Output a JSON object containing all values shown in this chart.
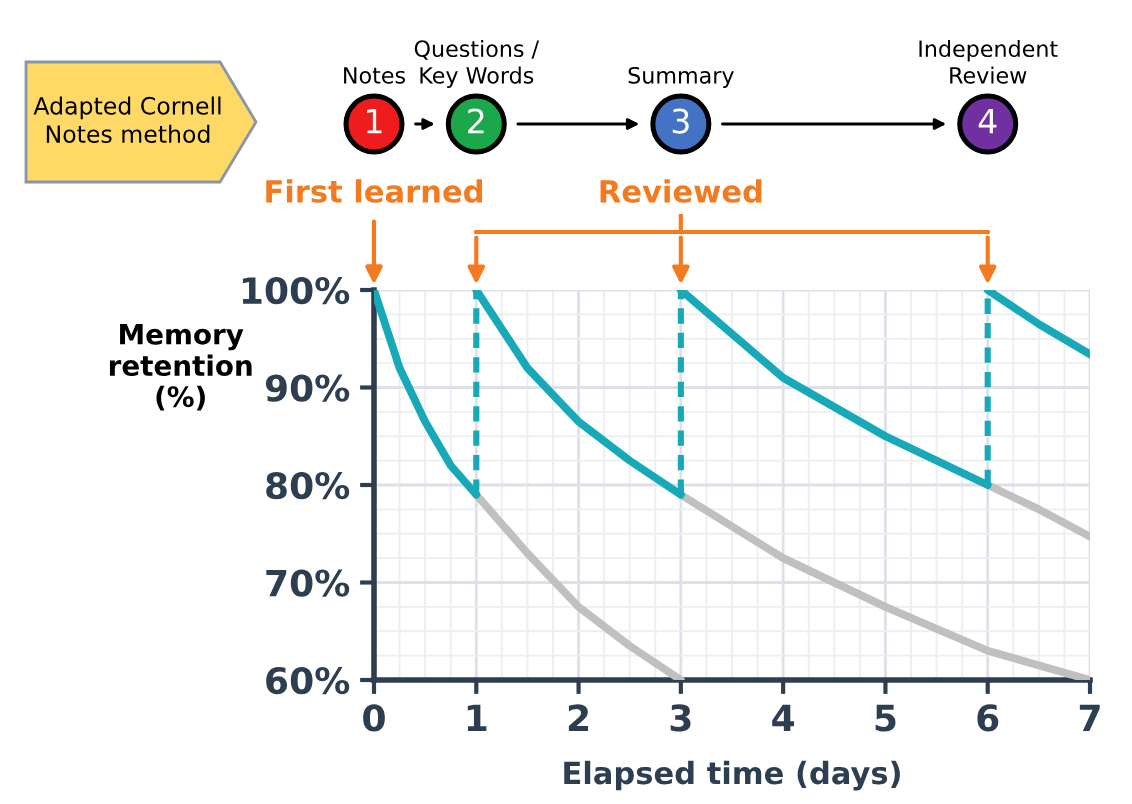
{
  "chart_data": {
    "type": "line",
    "xlabel": "Elapsed time (days)",
    "ylabel": "Memory\nretention\n(%)",
    "xlim": [
      0,
      7
    ],
    "ylim": [
      60,
      100
    ],
    "xticks": [
      0,
      1,
      2,
      3,
      4,
      5,
      6,
      7
    ],
    "yticks": [
      {
        "value": 60,
        "label": "60%"
      },
      {
        "value": 70,
        "label": "70%"
      },
      {
        "value": 80,
        "label": "80%"
      },
      {
        "value": 90,
        "label": "90%"
      },
      {
        "value": 100,
        "label": "100%"
      }
    ],
    "grid": true,
    "marker": "none",
    "series": [
      {
        "color": "#c0c0c0",
        "x": [
          1,
          1.5,
          2,
          2.5,
          3
        ],
        "values": [
          79,
          73,
          67.5,
          63.5,
          60
        ]
      },
      {
        "color": "#c0c0c0",
        "x": [
          3,
          4,
          5,
          6,
          7
        ],
        "values": [
          79,
          72.5,
          67.5,
          63,
          60
        ]
      },
      {
        "color": "#c0c0c0",
        "x": [
          6,
          6.5,
          7
        ],
        "values": [
          80,
          77.5,
          74.7
        ]
      },
      {
        "color": "#17a9b8",
        "line_style": "solid",
        "x": [
          0,
          0.25,
          0.5,
          0.75,
          1
        ],
        "values": [
          100,
          92,
          86.5,
          82,
          79
        ]
      },
      {
        "color": "#17a9b8",
        "line_style": "solid",
        "x": [
          1,
          1.5,
          2,
          2.5,
          3
        ],
        "values": [
          100,
          92,
          86.5,
          82.5,
          79
        ]
      },
      {
        "color": "#17a9b8",
        "line_style": "solid",
        "x": [
          3,
          4,
          5,
          6
        ],
        "values": [
          100,
          91,
          85,
          80
        ]
      },
      {
        "color": "#17a9b8",
        "line_style": "solid",
        "x": [
          6,
          6.5,
          7
        ],
        "values": [
          100,
          96.5,
          93.4
        ]
      },
      {
        "color": "#17a9b8",
        "line_style": "dashed",
        "x": [
          1,
          1
        ],
        "values": [
          79,
          100
        ]
      },
      {
        "color": "#17a9b8",
        "line_style": "dashed",
        "x": [
          3,
          3
        ],
        "values": [
          79,
          100
        ]
      },
      {
        "color": "#17a9b8",
        "line_style": "dashed",
        "x": [
          6,
          6
        ],
        "values": [
          80,
          100
        ]
      }
    ],
    "annotations": [
      {
        "text": "First learned",
        "x": 0,
        "y": 100
      },
      {
        "text": "Reviewed",
        "x": 3,
        "y": 100
      },
      "Notes",
      "Questions /\nKey Words",
      "Summary",
      "Independent\nReview",
      "1",
      "2",
      "3",
      "4",
      "Adapted Cornell\nNotes method"
    ]
  }
}
